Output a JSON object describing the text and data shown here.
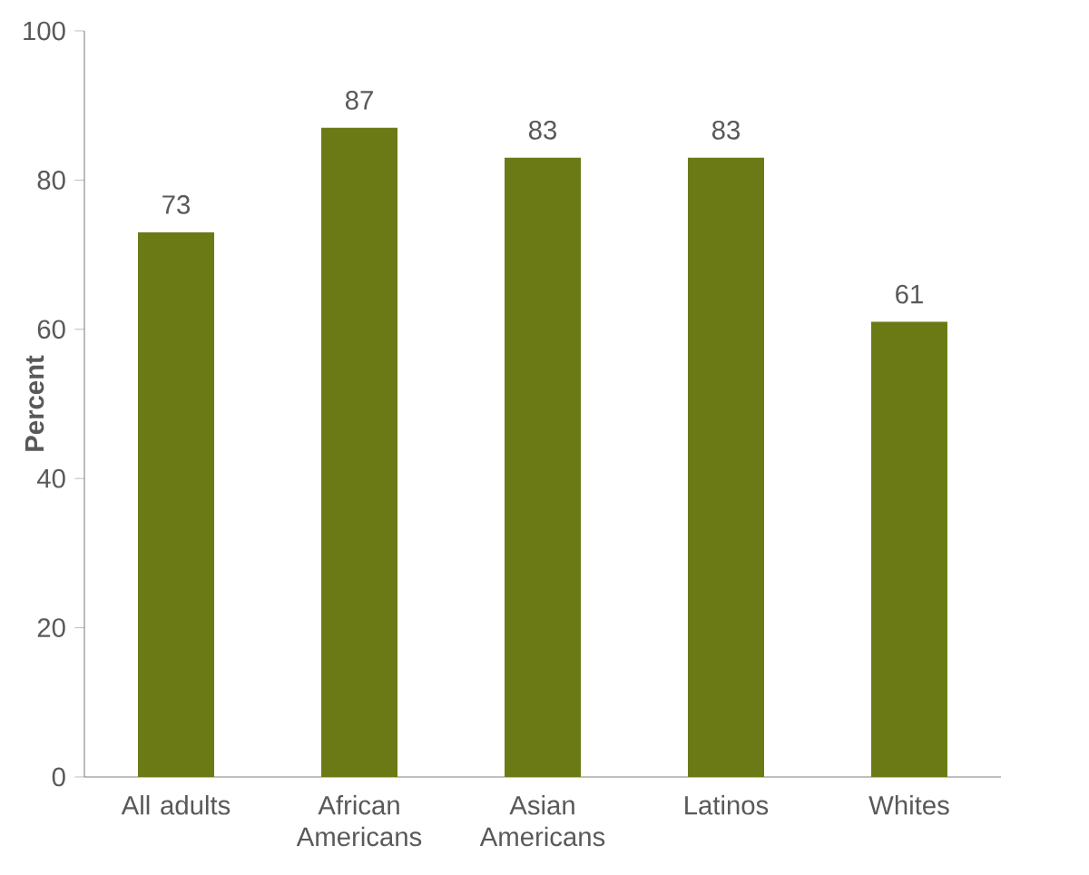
{
  "chart_data": {
    "type": "bar",
    "ylabel": "Percent",
    "categories": [
      "All adults",
      "African Americans",
      "Asian Americans",
      "Latinos",
      "Whites"
    ],
    "values": [
      73,
      87,
      83,
      83,
      61
    ],
    "color": "#6b7a14",
    "ylim": [
      0,
      100
    ],
    "yticks": [
      0,
      20,
      40,
      60,
      80,
      100
    ],
    "data_labels": true,
    "grid": false
  }
}
